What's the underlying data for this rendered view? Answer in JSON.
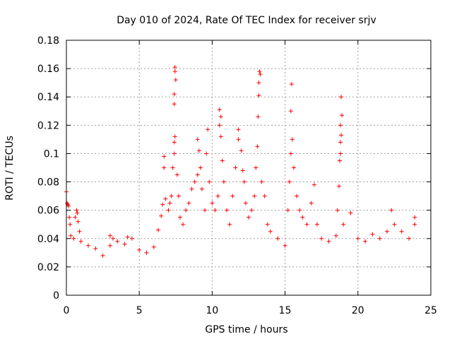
{
  "chart_data": {
    "type": "scatter",
    "title": "Day 010 of 2024, Rate Of TEC Index for receiver srjv",
    "xlabel": "GPS time / hours",
    "ylabel": "ROTI / TECUs",
    "xlim": [
      0,
      25
    ],
    "ylim": [
      0,
      0.18
    ],
    "xticks": [
      0,
      5,
      10,
      15,
      20,
      25
    ],
    "xtick_labels": [
      "0",
      "5",
      "10",
      "15",
      "20",
      "25"
    ],
    "yticks": [
      0,
      0.02,
      0.04,
      0.06,
      0.08,
      0.1,
      0.12,
      0.14,
      0.16,
      0.18
    ],
    "ytick_labels": [
      "0",
      "0.02",
      "0.04",
      "0.06",
      "0.08",
      "0.1",
      "0.12",
      "0.14",
      "0.16",
      "0.18"
    ],
    "grid": true,
    "marker": "+",
    "color": "#ff0000",
    "series": [
      {
        "name": "ROTI",
        "points": [
          [
            0.0,
            0.073
          ],
          [
            0.05,
            0.065
          ],
          [
            0.1,
            0.064
          ],
          [
            0.15,
            0.063
          ],
          [
            0.2,
            0.055
          ],
          [
            0.25,
            0.05
          ],
          [
            0.3,
            0.042
          ],
          [
            0.5,
            0.04
          ],
          [
            0.6,
            0.055
          ],
          [
            0.7,
            0.06
          ],
          [
            0.75,
            0.058
          ],
          [
            0.8,
            0.052
          ],
          [
            0.9,
            0.045
          ],
          [
            1.0,
            0.038
          ],
          [
            1.5,
            0.035
          ],
          [
            2.0,
            0.033
          ],
          [
            2.5,
            0.028
          ],
          [
            3.0,
            0.035
          ],
          [
            3.0,
            0.042
          ],
          [
            3.2,
            0.04
          ],
          [
            3.5,
            0.038
          ],
          [
            4.0,
            0.036
          ],
          [
            4.2,
            0.041
          ],
          [
            4.5,
            0.04
          ],
          [
            5.0,
            0.032
          ],
          [
            5.5,
            0.03
          ],
          [
            6.0,
            0.034
          ],
          [
            6.3,
            0.046
          ],
          [
            6.5,
            0.056
          ],
          [
            6.6,
            0.064
          ],
          [
            6.7,
            0.09
          ],
          [
            6.7,
            0.098
          ],
          [
            6.8,
            0.068
          ],
          [
            7.0,
            0.06
          ],
          [
            7.1,
            0.065
          ],
          [
            7.2,
            0.07
          ],
          [
            7.3,
            0.09
          ],
          [
            7.4,
            0.1
          ],
          [
            7.4,
            0.108
          ],
          [
            7.45,
            0.112
          ],
          [
            7.4,
            0.135
          ],
          [
            7.4,
            0.142
          ],
          [
            7.5,
            0.152
          ],
          [
            7.45,
            0.158
          ],
          [
            7.45,
            0.161
          ],
          [
            7.6,
            0.085
          ],
          [
            7.7,
            0.07
          ],
          [
            7.8,
            0.055
          ],
          [
            8.0,
            0.05
          ],
          [
            8.2,
            0.06
          ],
          [
            8.4,
            0.065
          ],
          [
            8.6,
            0.075
          ],
          [
            8.8,
            0.08
          ],
          [
            9.0,
            0.085
          ],
          [
            9.0,
            0.11
          ],
          [
            9.1,
            0.102
          ],
          [
            9.2,
            0.09
          ],
          [
            9.3,
            0.075
          ],
          [
            9.5,
            0.06
          ],
          [
            9.6,
            0.1
          ],
          [
            9.7,
            0.117
          ],
          [
            9.8,
            0.08
          ],
          [
            10.0,
            0.065
          ],
          [
            10.2,
            0.06
          ],
          [
            10.4,
            0.07
          ],
          [
            10.5,
            0.12
          ],
          [
            10.5,
            0.131
          ],
          [
            10.6,
            0.126
          ],
          [
            10.6,
            0.112
          ],
          [
            10.7,
            0.095
          ],
          [
            10.8,
            0.08
          ],
          [
            11.0,
            0.06
          ],
          [
            11.2,
            0.05
          ],
          [
            11.4,
            0.07
          ],
          [
            11.6,
            0.09
          ],
          [
            11.8,
            0.11
          ],
          [
            11.8,
            0.117
          ],
          [
            12.0,
            0.102
          ],
          [
            12.1,
            0.088
          ],
          [
            12.2,
            0.08
          ],
          [
            12.3,
            0.065
          ],
          [
            12.5,
            0.055
          ],
          [
            12.7,
            0.06
          ],
          [
            12.9,
            0.07
          ],
          [
            13.0,
            0.09
          ],
          [
            13.1,
            0.105
          ],
          [
            13.15,
            0.126
          ],
          [
            13.2,
            0.141
          ],
          [
            13.2,
            0.15
          ],
          [
            13.3,
            0.156
          ],
          [
            13.25,
            0.158
          ],
          [
            13.4,
            0.08
          ],
          [
            13.6,
            0.07
          ],
          [
            13.8,
            0.05
          ],
          [
            14.0,
            0.045
          ],
          [
            14.5,
            0.04
          ],
          [
            15.0,
            0.035
          ],
          [
            15.2,
            0.06
          ],
          [
            15.3,
            0.08
          ],
          [
            15.4,
            0.1
          ],
          [
            15.5,
            0.11
          ],
          [
            15.4,
            0.13
          ],
          [
            15.45,
            0.149
          ],
          [
            15.6,
            0.09
          ],
          [
            15.8,
            0.07
          ],
          [
            16.0,
            0.06
          ],
          [
            16.2,
            0.055
          ],
          [
            16.5,
            0.05
          ],
          [
            16.8,
            0.065
          ],
          [
            17.0,
            0.078
          ],
          [
            17.2,
            0.05
          ],
          [
            17.5,
            0.04
          ],
          [
            18.0,
            0.038
          ],
          [
            18.5,
            0.042
          ],
          [
            18.6,
            0.06
          ],
          [
            18.7,
            0.077
          ],
          [
            18.75,
            0.095
          ],
          [
            18.8,
            0.1
          ],
          [
            18.8,
            0.108
          ],
          [
            18.85,
            0.113
          ],
          [
            18.8,
            0.12
          ],
          [
            18.9,
            0.127
          ],
          [
            18.85,
            0.14
          ],
          [
            19.0,
            0.05
          ],
          [
            19.5,
            0.058
          ],
          [
            20.0,
            0.04
          ],
          [
            20.5,
            0.038
          ],
          [
            21.0,
            0.043
          ],
          [
            21.5,
            0.04
          ],
          [
            22.0,
            0.045
          ],
          [
            22.3,
            0.06
          ],
          [
            22.5,
            0.05
          ],
          [
            23.0,
            0.045
          ],
          [
            23.5,
            0.04
          ],
          [
            23.9,
            0.055
          ],
          [
            23.9,
            0.05
          ]
        ]
      }
    ]
  }
}
